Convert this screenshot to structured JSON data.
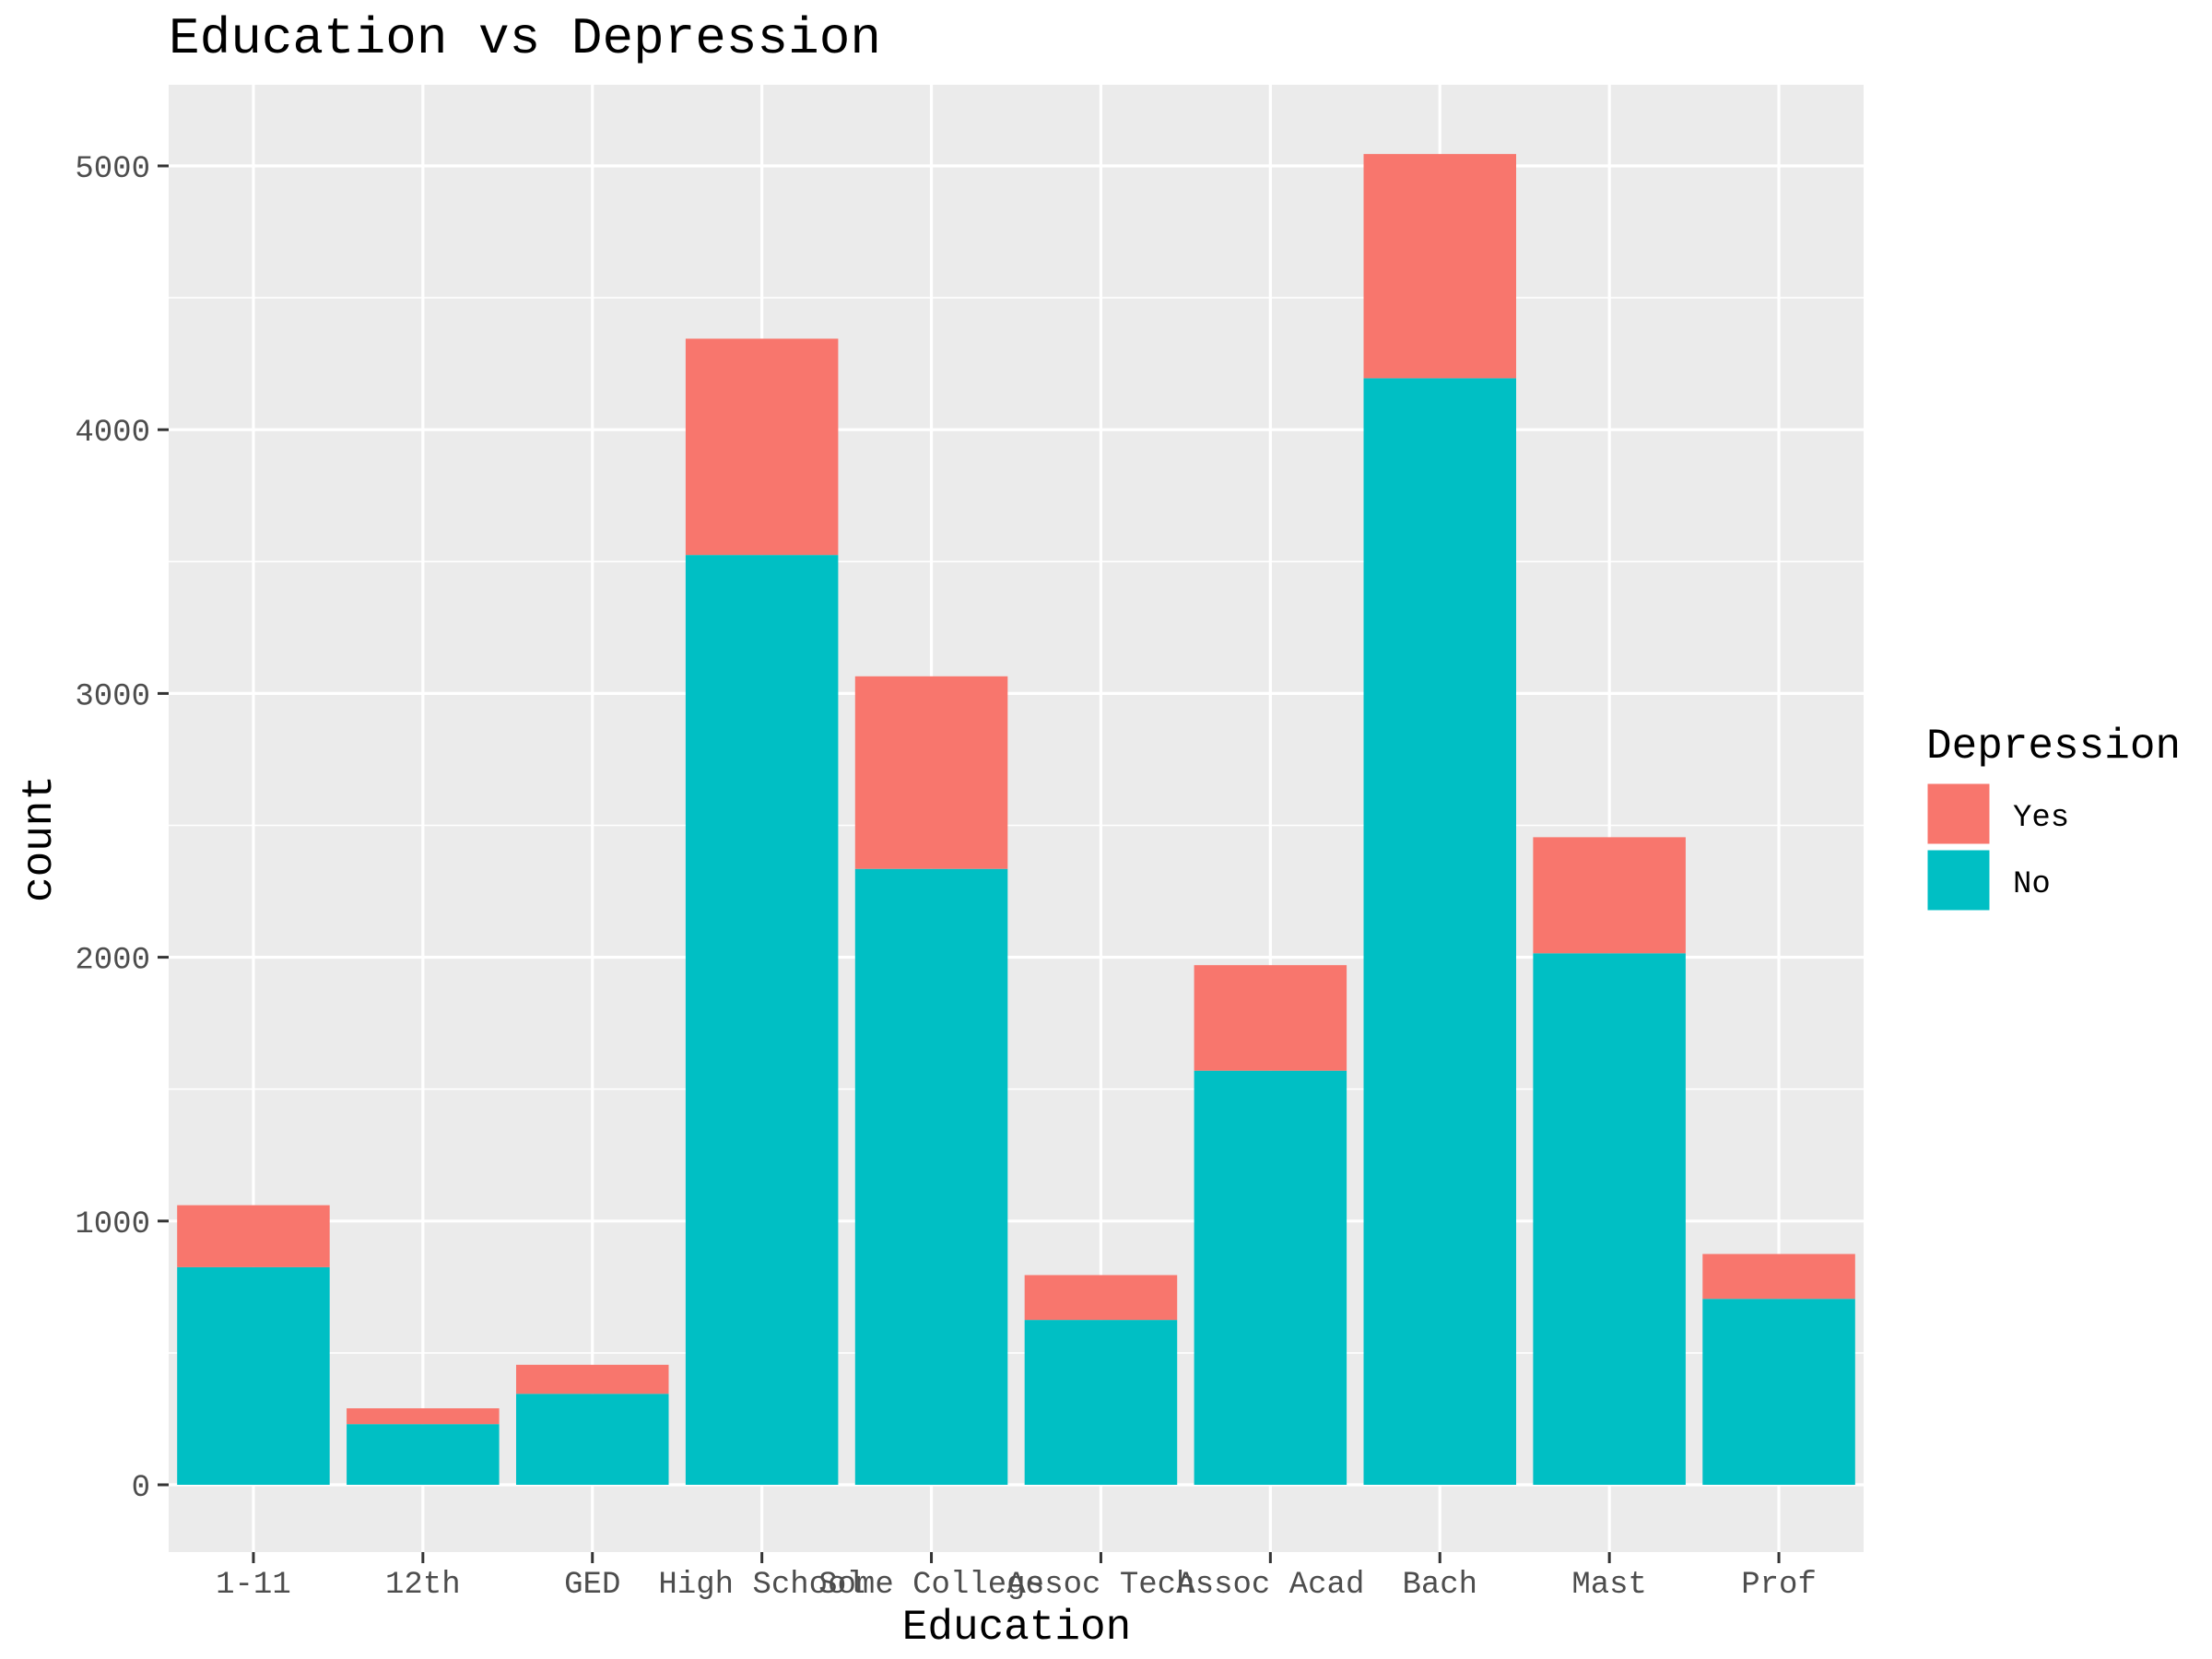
{
  "chart_data": {
    "type": "bar",
    "stacked": true,
    "title": "Education vs Depression",
    "xlabel": "Education",
    "ylabel": "count",
    "categories": [
      "1-11",
      "12th",
      "GED",
      "High School",
      "Some College",
      "Assoc Tech",
      "Assoc Acad",
      "Bach",
      "Mast",
      "Prof"
    ],
    "series": [
      {
        "name": "Yes",
        "color": "#F8766D",
        "values": [
          235,
          60,
          110,
          820,
          730,
          170,
          400,
          850,
          440,
          170
        ]
      },
      {
        "name": "No",
        "color": "#00BFC4",
        "values": [
          825,
          230,
          345,
          3525,
          2335,
          625,
          1570,
          4195,
          2015,
          705
        ]
      }
    ],
    "ylim": [
      0,
      5300
    ],
    "yticks": [
      0,
      1000,
      2000,
      3000,
      4000,
      5000
    ],
    "grid": true,
    "legend": {
      "title": "Depression",
      "placement": "right",
      "items": [
        "Yes",
        "No"
      ]
    },
    "panel_background": "#EBEBEB",
    "grid_color": "#FFFFFF"
  }
}
